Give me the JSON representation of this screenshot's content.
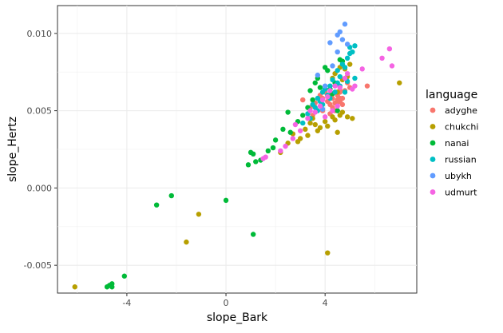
{
  "chart_data": {
    "type": "scatter",
    "title": "",
    "xlabel": "slope_Bark",
    "ylabel": "slope_Hertz",
    "xlim": [
      -6.8,
      7.7
    ],
    "ylim": [
      -0.0068,
      0.0118
    ],
    "x_ticks": [
      -4,
      0,
      4
    ],
    "x_tick_labels": [
      "-4",
      "0",
      "4"
    ],
    "y_ticks": [
      -0.005,
      0.0,
      0.005,
      0.01
    ],
    "y_tick_labels": [
      "-0.005",
      "0.000",
      "0.005",
      "0.010"
    ],
    "grid": true,
    "legend": {
      "title": "language",
      "position": "right"
    },
    "series": [
      {
        "name": "adyghe",
        "color": "#F8766D",
        "points": [
          [
            3.1,
            0.0057
          ],
          [
            3.4,
            0.0052
          ],
          [
            3.5,
            0.0047
          ],
          [
            3.6,
            0.0055
          ],
          [
            3.8,
            0.006
          ],
          [
            3.9,
            0.0058
          ],
          [
            4.0,
            0.0062
          ],
          [
            4.1,
            0.0056
          ],
          [
            4.2,
            0.0054
          ],
          [
            4.3,
            0.0058
          ],
          [
            4.4,
            0.0055
          ],
          [
            4.5,
            0.0057
          ],
          [
            4.5,
            0.006
          ],
          [
            4.6,
            0.0056
          ],
          [
            4.7,
            0.0058
          ],
          [
            4.6,
            0.0062
          ],
          [
            4.4,
            0.005
          ],
          [
            4.3,
            0.0052
          ],
          [
            4.8,
            0.0063
          ],
          [
            4.9,
            0.0068
          ],
          [
            5.0,
            0.0065
          ],
          [
            4.7,
            0.0054
          ],
          [
            4.6,
            0.0058
          ],
          [
            4.5,
            0.0055
          ],
          [
            5.7,
            0.0066
          ],
          [
            3.9,
            0.005
          ],
          [
            4.2,
            0.0048
          ],
          [
            4.6,
            0.0063
          ]
        ]
      },
      {
        "name": "chukchi",
        "color": "#B79F00",
        "points": [
          [
            -6.1,
            -0.0064
          ],
          [
            -1.6,
            -0.0035
          ],
          [
            -1.1,
            -0.0017
          ],
          [
            4.1,
            -0.0042
          ],
          [
            2.2,
            0.0023
          ],
          [
            2.5,
            0.0029
          ],
          [
            2.7,
            0.0035
          ],
          [
            2.9,
            0.003
          ],
          [
            3.0,
            0.0032
          ],
          [
            3.2,
            0.0038
          ],
          [
            3.4,
            0.0042
          ],
          [
            3.5,
            0.0045
          ],
          [
            3.6,
            0.0041
          ],
          [
            3.8,
            0.0039
          ],
          [
            4.0,
            0.0043
          ],
          [
            4.1,
            0.004
          ],
          [
            4.3,
            0.0046
          ],
          [
            4.4,
            0.0044
          ],
          [
            4.6,
            0.0047
          ],
          [
            4.7,
            0.0049
          ],
          [
            4.9,
            0.0046
          ],
          [
            5.1,
            0.0045
          ],
          [
            3.3,
            0.0034
          ],
          [
            3.7,
            0.0037
          ],
          [
            4.2,
            0.006
          ],
          [
            4.5,
            0.0062
          ],
          [
            4.7,
            0.007
          ],
          [
            4.8,
            0.0077
          ],
          [
            4.9,
            0.0072
          ],
          [
            4.6,
            0.0078
          ],
          [
            4.4,
            0.0074
          ],
          [
            4.3,
            0.0071
          ],
          [
            7.0,
            0.0068
          ],
          [
            4.5,
            0.0036
          ],
          [
            5.0,
            0.008
          ]
        ]
      },
      {
        "name": "nanai",
        "color": "#00BA38",
        "points": [
          [
            -4.8,
            -0.0064
          ],
          [
            -4.7,
            -0.0063
          ],
          [
            -4.6,
            -0.0062
          ],
          [
            -4.6,
            -0.0064
          ],
          [
            -4.1,
            -0.0057
          ],
          [
            -2.8,
            -0.0011
          ],
          [
            -2.2,
            -0.0005
          ],
          [
            0.0,
            -0.0008
          ],
          [
            1.1,
            -0.003
          ],
          [
            0.9,
            0.0015
          ],
          [
            1.0,
            0.0023
          ],
          [
            1.1,
            0.0022
          ],
          [
            1.2,
            0.0017
          ],
          [
            1.4,
            0.0018
          ],
          [
            1.7,
            0.0024
          ],
          [
            1.9,
            0.0026
          ],
          [
            2.0,
            0.0031
          ],
          [
            2.3,
            0.0038
          ],
          [
            2.5,
            0.0049
          ],
          [
            2.6,
            0.0036
          ],
          [
            2.9,
            0.0043
          ],
          [
            3.1,
            0.0047
          ],
          [
            3.3,
            0.0052
          ],
          [
            3.4,
            0.0063
          ],
          [
            3.6,
            0.0068
          ],
          [
            3.7,
            0.0071
          ],
          [
            3.8,
            0.0065
          ],
          [
            4.0,
            0.0078
          ],
          [
            4.1,
            0.0076
          ],
          [
            4.3,
            0.0061
          ],
          [
            4.4,
            0.0068
          ],
          [
            4.6,
            0.0083
          ],
          [
            4.7,
            0.0082
          ],
          [
            4.5,
            0.005
          ],
          [
            4.2,
            0.0064
          ],
          [
            3.5,
            0.0057
          ]
        ]
      },
      {
        "name": "russian",
        "color": "#00BFC4",
        "points": [
          [
            3.1,
            0.0042
          ],
          [
            3.3,
            0.0048
          ],
          [
            3.4,
            0.0045
          ],
          [
            3.6,
            0.0052
          ],
          [
            3.7,
            0.0058
          ],
          [
            3.7,
            0.005
          ],
          [
            3.8,
            0.0056
          ],
          [
            3.9,
            0.0062
          ],
          [
            3.9,
            0.0054
          ],
          [
            4.0,
            0.0064
          ],
          [
            4.1,
            0.006
          ],
          [
            4.2,
            0.0066
          ],
          [
            4.2,
            0.0058
          ],
          [
            4.3,
            0.007
          ],
          [
            4.4,
            0.0062
          ],
          [
            4.5,
            0.0068
          ],
          [
            4.5,
            0.0076
          ],
          [
            4.6,
            0.0072
          ],
          [
            4.7,
            0.008
          ],
          [
            4.8,
            0.0078
          ],
          [
            4.9,
            0.0084
          ],
          [
            5.0,
            0.0087
          ],
          [
            5.0,
            0.0091
          ],
          [
            5.1,
            0.0088
          ],
          [
            5.2,
            0.0092
          ],
          [
            4.9,
            0.0069
          ],
          [
            4.6,
            0.0066
          ],
          [
            4.8,
            0.0062
          ],
          [
            5.2,
            0.0071
          ],
          [
            3.5,
            0.0054
          ]
        ]
      },
      {
        "name": "ubykh",
        "color": "#619CFF",
        "points": [
          [
            4.2,
            0.0094
          ],
          [
            4.5,
            0.0099
          ],
          [
            4.6,
            0.0101
          ],
          [
            4.8,
            0.0106
          ],
          [
            4.7,
            0.0096
          ],
          [
            4.9,
            0.0093
          ],
          [
            4.5,
            0.0088
          ],
          [
            4.3,
            0.0079
          ],
          [
            3.7,
            0.0073
          ],
          [
            4.0,
            0.0066
          ],
          [
            3.9,
            0.0051
          ]
        ]
      },
      {
        "name": "udmurt",
        "color": "#F564E3",
        "points": [
          [
            1.5,
            0.0019
          ],
          [
            1.6,
            0.002
          ],
          [
            2.2,
            0.0024
          ],
          [
            2.4,
            0.0027
          ],
          [
            2.7,
            0.0032
          ],
          [
            2.8,
            0.0041
          ],
          [
            3.0,
            0.0037
          ],
          [
            3.3,
            0.0045
          ],
          [
            3.4,
            0.005
          ],
          [
            3.6,
            0.0049
          ],
          [
            3.8,
            0.0053
          ],
          [
            3.9,
            0.0057
          ],
          [
            4.1,
            0.0059
          ],
          [
            4.2,
            0.0063
          ],
          [
            4.4,
            0.0066
          ],
          [
            4.6,
            0.0065
          ],
          [
            4.8,
            0.0071
          ],
          [
            4.9,
            0.0074
          ],
          [
            5.1,
            0.0064
          ],
          [
            5.2,
            0.0066
          ],
          [
            5.5,
            0.0077
          ],
          [
            6.3,
            0.0084
          ],
          [
            6.6,
            0.009
          ],
          [
            6.7,
            0.0079
          ],
          [
            4.0,
            0.0046
          ],
          [
            4.3,
            0.005
          ],
          [
            4.5,
            0.0053
          ]
        ]
      }
    ]
  }
}
